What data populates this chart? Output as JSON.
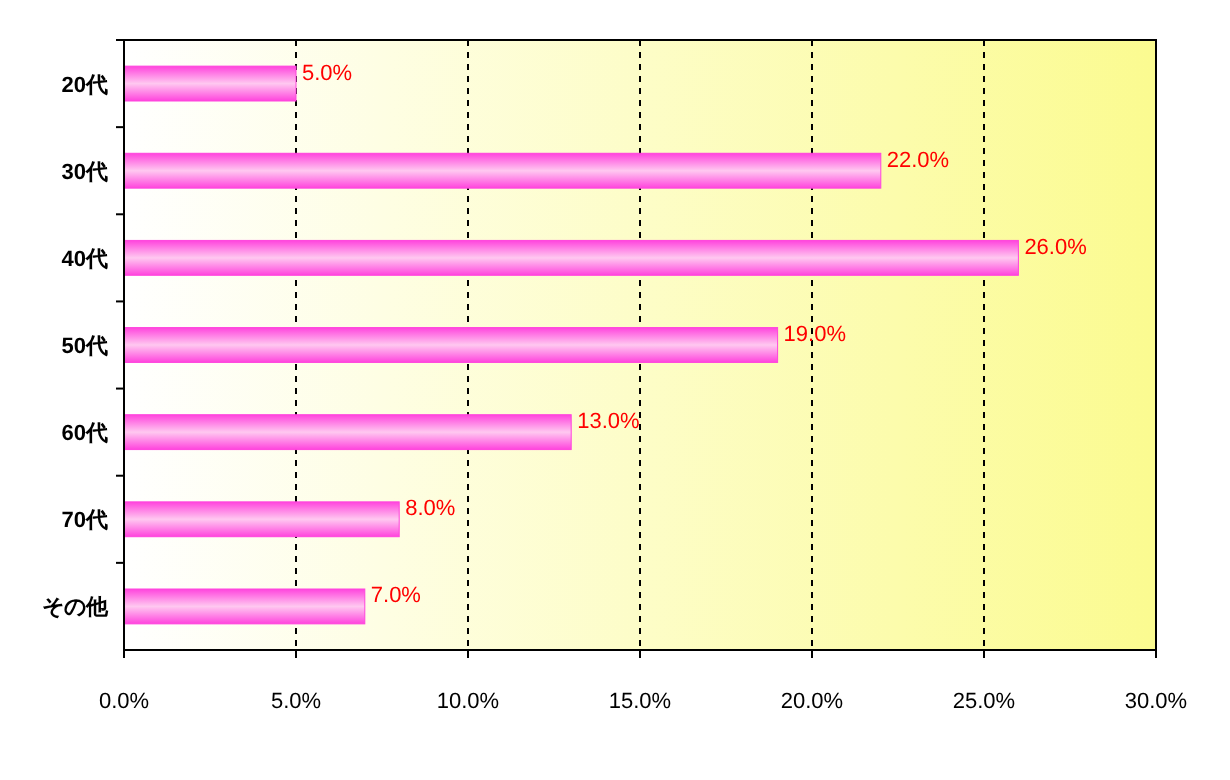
{
  "chart_data": {
    "type": "bar",
    "orientation": "horizontal",
    "categories": [
      "20代",
      "30代",
      "40代",
      "50代",
      "60代",
      "70代",
      "その他"
    ],
    "values": [
      5,
      22,
      26,
      19,
      13,
      8,
      7
    ],
    "value_labels": [
      "5.0%",
      "22.0%",
      "26.0%",
      "19.0%",
      "13.0%",
      "8.0%",
      "7.0%"
    ],
    "color": "#ff44dd",
    "xlim": [
      0,
      30
    ],
    "xticks": [
      {
        "value": 0,
        "label": "0.0%"
      },
      {
        "value": 5,
        "label": "5.0%"
      },
      {
        "value": 10,
        "label": "10.0%"
      },
      {
        "value": 15,
        "label": "15.0%"
      },
      {
        "value": 20,
        "label": "20.0%"
      },
      {
        "value": 25,
        "label": "25.0%"
      },
      {
        "value": 30,
        "label": "30.0%"
      }
    ],
    "grid": "x"
  }
}
